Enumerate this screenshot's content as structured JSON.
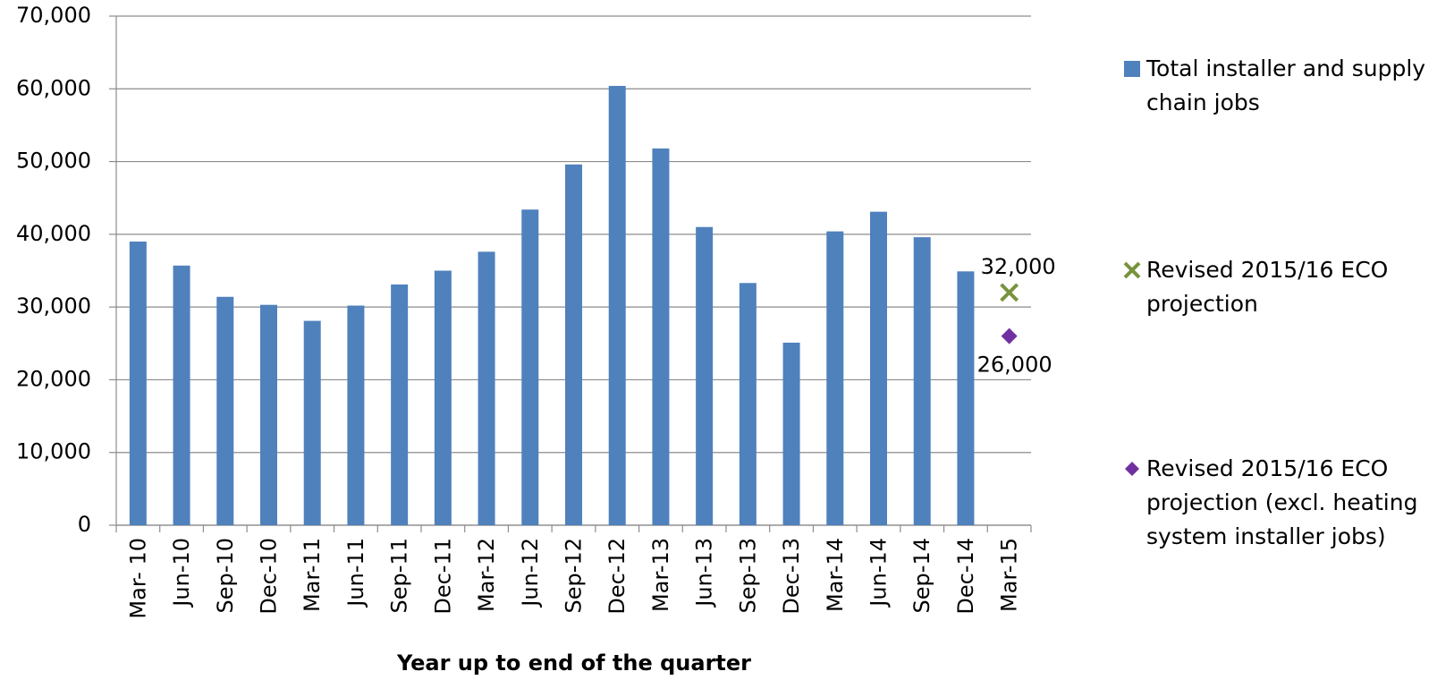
{
  "chart_data": {
    "type": "bar",
    "x_label": "Year up to end of the quarter",
    "categories": [
      "Mar- 10",
      "Jun-10",
      "Sep-10",
      "Dec-10",
      "Mar-11",
      "Jun-11",
      "Sep-11",
      "Dec-11",
      "Mar-12",
      "Jun-12",
      "Sep-12",
      "Dec-12",
      "Mar-13",
      "Jun-13",
      "Sep-13",
      "Dec-13",
      "Mar-14",
      "Jun-14",
      "Sep-14",
      "Dec-14",
      "Mar-15"
    ],
    "series": [
      {
        "name": "Total installer and supply chain jobs",
        "type": "bar",
        "color": "#4f81bd",
        "values": [
          39000,
          35700,
          31400,
          30300,
          28100,
          30200,
          33100,
          35000,
          37600,
          43400,
          49600,
          60400,
          51800,
          41000,
          33300,
          25100,
          40400,
          43100,
          39600,
          34900,
          null
        ]
      },
      {
        "name": "Revised 2015/16 ECO projection",
        "type": "scatter",
        "marker": "x",
        "color": "#77933c",
        "values": [
          null,
          null,
          null,
          null,
          null,
          null,
          null,
          null,
          null,
          null,
          null,
          null,
          null,
          null,
          null,
          null,
          null,
          null,
          null,
          null,
          32000
        ],
        "value_labels": [
          null,
          null,
          null,
          null,
          null,
          null,
          null,
          null,
          null,
          null,
          null,
          null,
          null,
          null,
          null,
          null,
          null,
          null,
          null,
          null,
          "32,000"
        ]
      },
      {
        "name": "Revised 2015/16 ECO projection (excl. heating system installer jobs)",
        "type": "scatter",
        "marker": "diamond",
        "color": "#7030a0",
        "values": [
          null,
          null,
          null,
          null,
          null,
          null,
          null,
          null,
          null,
          null,
          null,
          null,
          null,
          null,
          null,
          null,
          null,
          null,
          null,
          null,
          26000
        ],
        "value_labels": [
          null,
          null,
          null,
          null,
          null,
          null,
          null,
          null,
          null,
          null,
          null,
          null,
          null,
          null,
          null,
          null,
          null,
          null,
          null,
          null,
          "26,000"
        ]
      }
    ],
    "ylim": [
      0,
      70000
    ],
    "yticks": [
      0,
      {
        "value": 10000,
        "label": "10,000"
      },
      {
        "value": 20000,
        "label": "20,000"
      },
      {
        "value": 30000,
        "label": "30,000"
      },
      {
        "value": 40000,
        "label": "40,000"
      },
      {
        "value": 50000,
        "label": "50,000"
      },
      {
        "value": 60000,
        "label": "60,000"
      },
      {
        "value": 70000,
        "label": "70,000"
      }
    ],
    "grid": true,
    "legend": "right"
  }
}
